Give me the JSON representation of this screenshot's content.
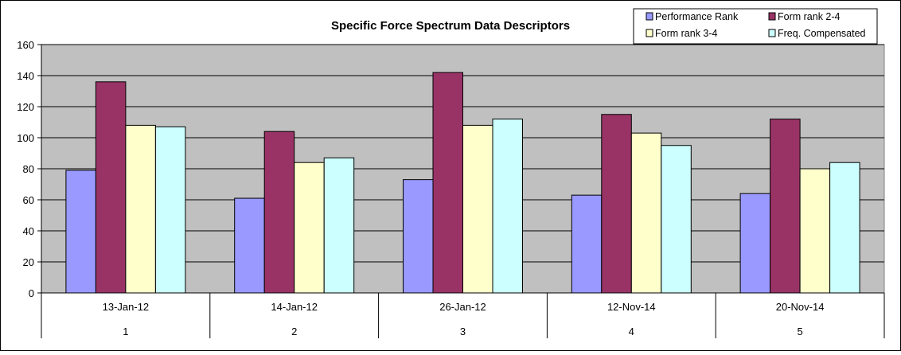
{
  "chart_data": {
    "type": "bar",
    "title": "Specific Force Spectrum Data Descriptors",
    "xlabel": "",
    "ylabel": "",
    "ylim": [
      0,
      160
    ],
    "yticks": [
      0,
      20,
      40,
      60,
      80,
      100,
      120,
      140,
      160
    ],
    "grid": true,
    "legend_position": "top-right",
    "categories": [
      "13-Jan-12",
      "14-Jan-12",
      "26-Jan-12",
      "12-Nov-14",
      "20-Nov-14"
    ],
    "category_numbers": [
      "1",
      "2",
      "3",
      "4",
      "5"
    ],
    "series": [
      {
        "name": "Performance Rank",
        "color": "#9999ff",
        "values": [
          79,
          61,
          73,
          63,
          64
        ]
      },
      {
        "name": "Form rank 2-4",
        "color": "#993366",
        "values": [
          136,
          104,
          142,
          115,
          112
        ]
      },
      {
        "name": "Form rank 3-4",
        "color": "#ffffcc",
        "values": [
          108,
          84,
          108,
          103,
          80
        ]
      },
      {
        "name": "Freq. Compensated",
        "color": "#ccffff",
        "values": [
          107,
          87,
          112,
          95,
          84
        ]
      }
    ],
    "plot_background": "#c0c0c0"
  }
}
